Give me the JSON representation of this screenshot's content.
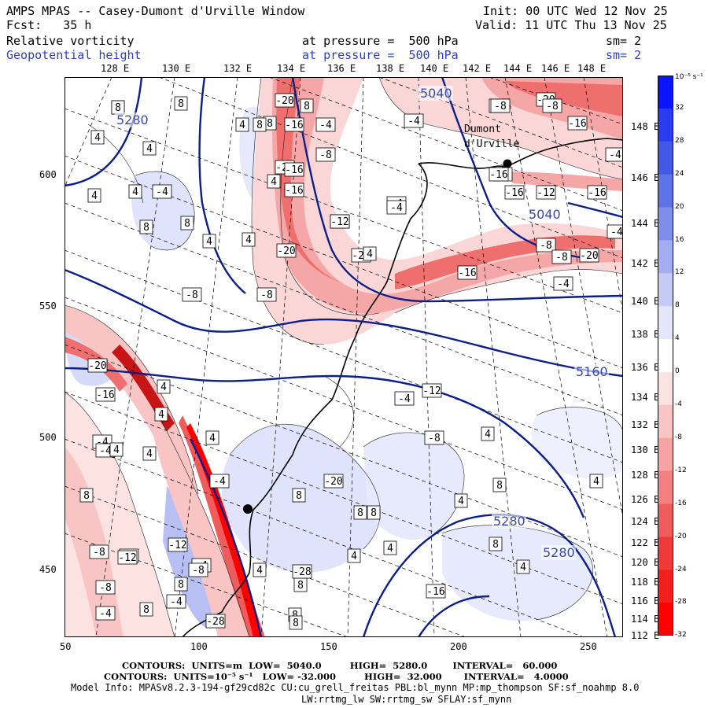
{
  "header": {
    "title": "AMPS MPAS -- Casey-Dumont d'Urville Window",
    "init": "Init: 00 UTC Wed 12 Nov 25",
    "fcst": "Fcst:   35 h",
    "valid": "Valid: 11 UTC Thu 13 Nov 25",
    "field1_name": "Relative vorticity",
    "field1_level": "at pressure =  500 hPa",
    "field1_sm": "sm= 2",
    "field2_name": "Geopotential height",
    "field2_level": "at pressure =  500 hPa",
    "field2_sm": "sm= 2"
  },
  "axes": {
    "top_lon_labels": [
      "128 E",
      "130 E",
      "132 E",
      "134 E",
      "136 E",
      "138 E",
      "140 E",
      "142 E",
      "144 E",
      "146 E",
      "148 E"
    ],
    "right_lat_labels": [
      "148 E",
      "146 E",
      "144 E",
      "142 E",
      "140 E",
      "138 E",
      "136 E",
      "134 E",
      "132 E",
      "130 E",
      "128 E",
      "126 E",
      "124 E",
      "122 E",
      "120 E",
      "118 E",
      "116 E",
      "114 E",
      "112 E"
    ],
    "y_ticks": [
      "600",
      "550",
      "500",
      "450"
    ],
    "x_ticks": [
      "50",
      "100",
      "150",
      "200",
      "250"
    ]
  },
  "colorbar": {
    "unit": "10⁻⁵ s⁻¹",
    "labels": [
      "32",
      "28",
      "24",
      "20",
      "16",
      "12",
      "8",
      "4",
      "0",
      "-4",
      "-8",
      "-12",
      "-16",
      "-20",
      "-24",
      "-28",
      "-32"
    ],
    "colors": [
      "#0a14ff",
      "#2a3cf0",
      "#4458e6",
      "#5f72e6",
      "#7f8ee9",
      "#a3aef0",
      "#c5cbf5",
      "#e4e7fb",
      "#ffffff",
      "#fde2e2",
      "#f9c4c4",
      "#f5a3a3",
      "#f28080",
      "#ef5c5c",
      "#f03a3a",
      "#f21d1d",
      "#ff0000"
    ]
  },
  "map_labels": {
    "station": "Dumont d'Urville",
    "height_labels": [
      "5280",
      "5040",
      "5040",
      "5160",
      "5280",
      "5280"
    ],
    "vort_boxes": [
      "8",
      "8",
      "4",
      "8",
      "4",
      "4",
      "4",
      "4",
      "-4",
      "4",
      "4",
      "4",
      "8",
      "8",
      "8",
      "8",
      "-4",
      "-8",
      "-8",
      "-20",
      "-16",
      "-20",
      "-16",
      "-16",
      "-20",
      "-20",
      "-12",
      "-4",
      "-8",
      "-12",
      "-16",
      "-4",
      "-8",
      "-20",
      "-16",
      "-4",
      "-8",
      "-8",
      "-8",
      "-8",
      "-20",
      "-16",
      "-12",
      "-16",
      "-16",
      "-4",
      "-4",
      "-4",
      "4",
      "-4",
      "4",
      "-8",
      "-20",
      "4",
      "4",
      "4",
      "4",
      "8",
      "8",
      "8",
      "-16",
      "8",
      "4",
      "4",
      "-20",
      "-12",
      "-16",
      "-4",
      "-4",
      "-8",
      "8",
      "8",
      "8",
      "-12",
      "-8",
      "-4",
      "8",
      "8",
      "4",
      "4",
      "4",
      "-8",
      "-4",
      "-4",
      "-12",
      "-8",
      "4",
      "8",
      "4",
      "-4",
      "-28",
      "8",
      "-8",
      "-28",
      "8"
    ]
  },
  "footer": {
    "line1": "CONTOURS:  UNITS=m  LOW=  5040.0         HIGH=  5280.0        INTERVAL=   60.000",
    "line2": "CONTOURS:  UNITS=10⁻⁵ s⁻¹   LOW= -32.000         HIGH=  32.000       INTERVAL=   4.0000",
    "line3": "Model Info: MPASv8.2.3-194-gf29cd82c CU:cu_grell_freitas PBL:bl_mynn MP:mp_thompson SF:sf_noahmp 8.0",
    "line4": "LW:rrtmg_lw SW:rrtmg_sw SFLAY:sf_mynn"
  }
}
